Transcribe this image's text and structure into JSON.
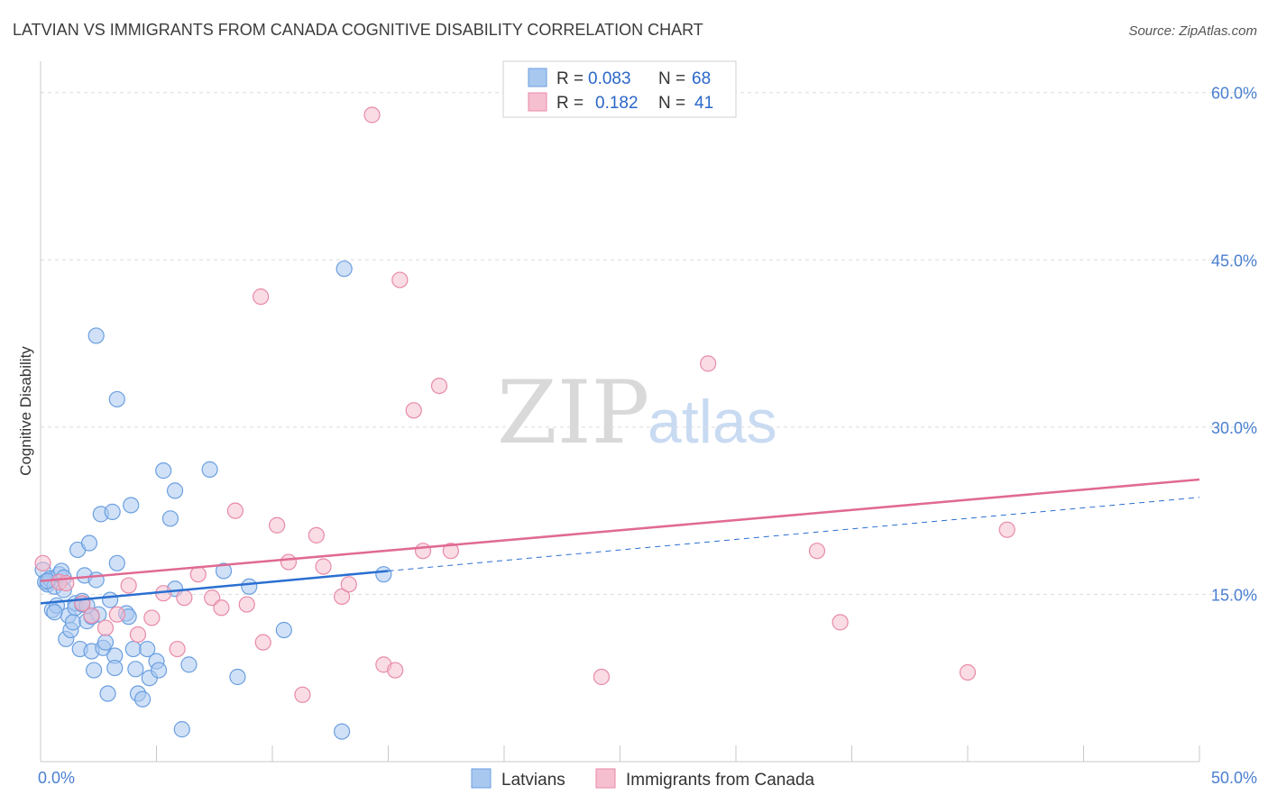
{
  "chart_data": {
    "type": "scatter",
    "title": "LATVIAN VS IMMIGRANTS FROM CANADA COGNITIVE DISABILITY CORRELATION CHART",
    "source": "Source: ZipAtlas.com",
    "ylabel": "Cognitive Disability",
    "xlabel": "",
    "xlim": [
      0,
      50
    ],
    "ylim": [
      0,
      62
    ],
    "x_tick_labels": [
      "0.0%",
      "50.0%"
    ],
    "y_ticks": [
      15,
      30,
      45,
      60
    ],
    "y_tick_labels": [
      "15.0%",
      "30.0%",
      "45.0%",
      "60.0%"
    ],
    "watermark": {
      "zip": "ZIP",
      "atlas": "atlas"
    },
    "legend": {
      "r_label": "R =",
      "n_label": "N =",
      "entries": [
        {
          "r": "0.083",
          "n": "68"
        },
        {
          "r": "0.182",
          "n": "41"
        }
      ]
    },
    "series": [
      {
        "name": "Latvians",
        "color": "#6b9fe0",
        "fill": "#a9c8f0",
        "trend": {
          "x0": 0,
          "y0": 14.2,
          "x1": 15,
          "y1": 17.1,
          "dash_x1": 50,
          "dash_y1": 23.7
        },
        "trend_color": "#2a6fd1",
        "points": [
          [
            0.1,
            17.2
          ],
          [
            0.2,
            16.1
          ],
          [
            0.3,
            15.9
          ],
          [
            0.4,
            16.4
          ],
          [
            0.5,
            13.6
          ],
          [
            0.6,
            15.7
          ],
          [
            0.7,
            14.0
          ],
          [
            0.8,
            16.8
          ],
          [
            0.9,
            17.1
          ],
          [
            1.0,
            16.5
          ],
          [
            1.1,
            11.0
          ],
          [
            1.2,
            13.1
          ],
          [
            1.3,
            11.8
          ],
          [
            1.4,
            12.5
          ],
          [
            1.5,
            14.2
          ],
          [
            1.6,
            19.0
          ],
          [
            1.7,
            10.1
          ],
          [
            1.8,
            14.4
          ],
          [
            1.9,
            16.7
          ],
          [
            2.0,
            12.6
          ],
          [
            2.1,
            19.6
          ],
          [
            2.2,
            9.9
          ],
          [
            2.3,
            8.2
          ],
          [
            2.4,
            16.3
          ],
          [
            2.5,
            13.2
          ],
          [
            2.4,
            38.2
          ],
          [
            2.6,
            22.2
          ],
          [
            2.7,
            10.2
          ],
          [
            2.8,
            10.7
          ],
          [
            2.9,
            6.1
          ],
          [
            3.0,
            14.5
          ],
          [
            3.1,
            22.4
          ],
          [
            3.2,
            9.5
          ],
          [
            3.2,
            8.4
          ],
          [
            3.3,
            32.5
          ],
          [
            3.3,
            17.8
          ],
          [
            3.7,
            13.3
          ],
          [
            3.8,
            13.0
          ],
          [
            3.9,
            23.0
          ],
          [
            4.0,
            10.1
          ],
          [
            4.1,
            8.3
          ],
          [
            4.2,
            6.1
          ],
          [
            4.4,
            5.6
          ],
          [
            4.6,
            10.1
          ],
          [
            4.7,
            7.5
          ],
          [
            5.0,
            9.0
          ],
          [
            5.1,
            8.2
          ],
          [
            5.3,
            26.1
          ],
          [
            5.6,
            21.8
          ],
          [
            5.8,
            24.3
          ],
          [
            5.8,
            15.5
          ],
          [
            6.1,
            2.9
          ],
          [
            6.4,
            8.7
          ],
          [
            7.3,
            26.2
          ],
          [
            7.9,
            17.1
          ],
          [
            8.5,
            7.6
          ],
          [
            9.0,
            15.7
          ],
          [
            10.5,
            11.8
          ],
          [
            13.1,
            44.2
          ],
          [
            13.0,
            2.7
          ],
          [
            14.8,
            16.8
          ],
          [
            0.3,
            16.2
          ],
          [
            1.0,
            15.4
          ],
          [
            1.5,
            13.8
          ],
          [
            1.8,
            14.1
          ],
          [
            0.6,
            13.4
          ],
          [
            2.2,
            13.0
          ],
          [
            2.0,
            14.0
          ]
        ]
      },
      {
        "name": "Immigrants from Canada",
        "color": "#e88aa8",
        "fill": "#f6bfd0",
        "trend": {
          "x0": 0,
          "y0": 16.2,
          "x1": 50,
          "y1": 25.3
        },
        "trend_color": "#e06a93",
        "points": [
          [
            0.1,
            17.8
          ],
          [
            0.8,
            16.1
          ],
          [
            1.1,
            16.0
          ],
          [
            1.8,
            14.2
          ],
          [
            2.2,
            13.1
          ],
          [
            2.8,
            12.0
          ],
          [
            3.3,
            13.2
          ],
          [
            3.8,
            15.8
          ],
          [
            4.2,
            11.4
          ],
          [
            4.8,
            12.9
          ],
          [
            5.3,
            15.1
          ],
          [
            5.9,
            10.1
          ],
          [
            6.2,
            14.7
          ],
          [
            6.8,
            16.8
          ],
          [
            7.4,
            14.7
          ],
          [
            7.8,
            13.8
          ],
          [
            8.4,
            22.5
          ],
          [
            8.9,
            14.1
          ],
          [
            9.5,
            41.7
          ],
          [
            9.6,
            10.7
          ],
          [
            10.2,
            21.2
          ],
          [
            10.7,
            17.9
          ],
          [
            11.3,
            6.0
          ],
          [
            11.9,
            20.3
          ],
          [
            12.2,
            17.5
          ],
          [
            13.0,
            14.8
          ],
          [
            13.3,
            15.9
          ],
          [
            14.3,
            58.0
          ],
          [
            14.8,
            8.7
          ],
          [
            15.3,
            8.2
          ],
          [
            15.5,
            43.2
          ],
          [
            16.1,
            31.5
          ],
          [
            16.5,
            18.9
          ],
          [
            17.2,
            33.7
          ],
          [
            17.7,
            18.9
          ],
          [
            24.2,
            7.6
          ],
          [
            28.8,
            35.7
          ],
          [
            33.5,
            18.9
          ],
          [
            34.5,
            12.5
          ],
          [
            40.0,
            8.0
          ],
          [
            41.7,
            20.8
          ]
        ]
      }
    ]
  }
}
